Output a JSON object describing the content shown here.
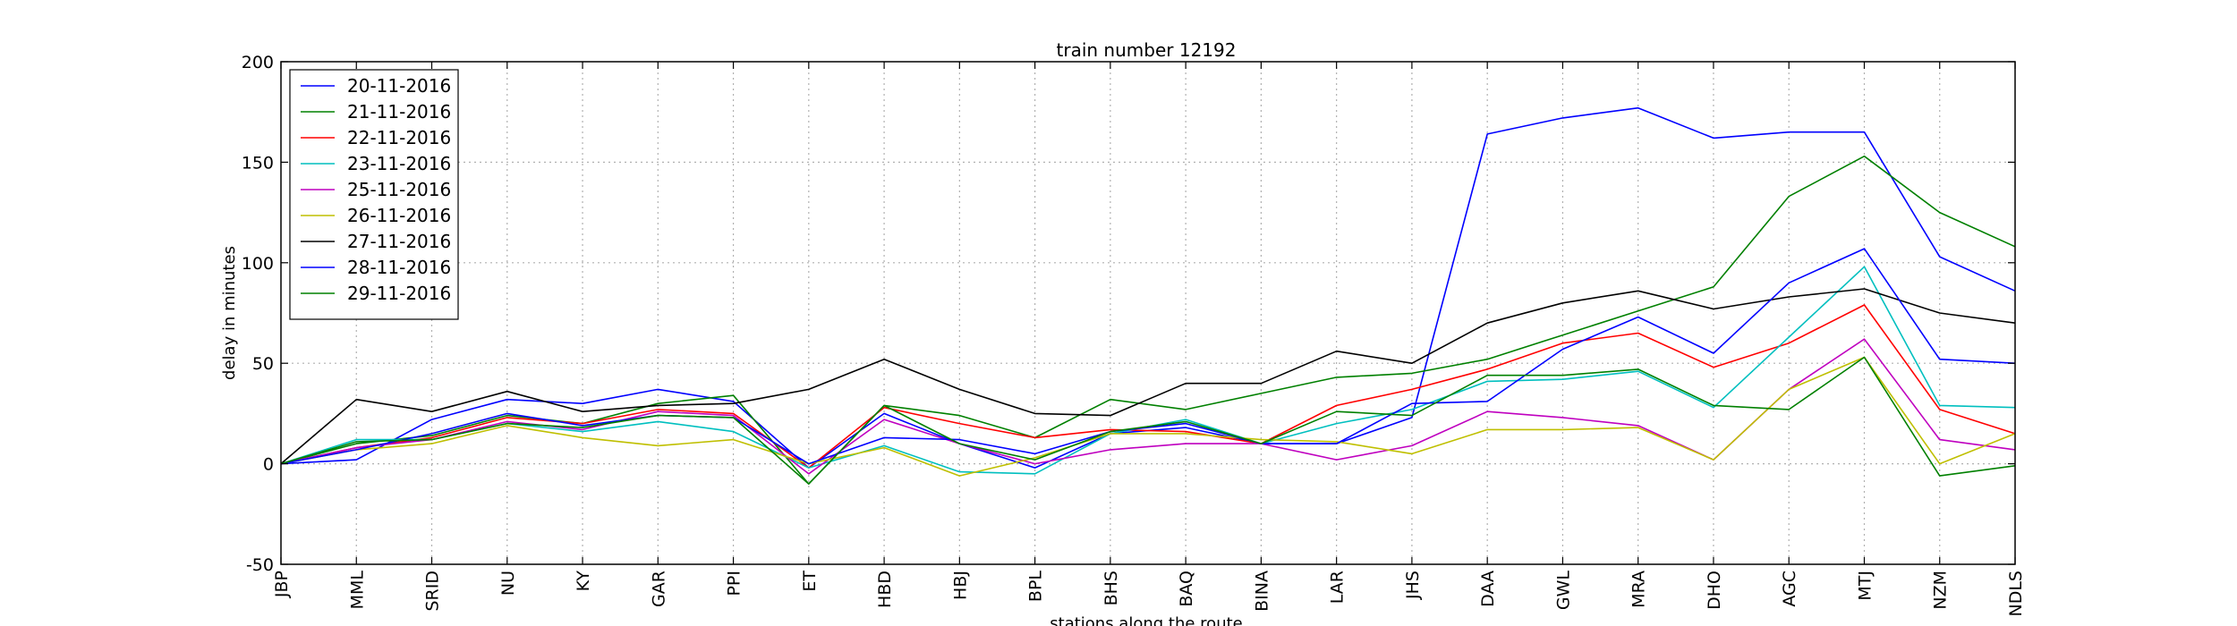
{
  "chart_data": {
    "type": "line",
    "title": "train number 12192",
    "xlabel": "stations along the route",
    "ylabel": "delay in minutes",
    "categories": [
      "JBP",
      "MML",
      "SRID",
      "NU",
      "KY",
      "GAR",
      "PPI",
      "ET",
      "HBD",
      "HBJ",
      "BPL",
      "BHS",
      "BAQ",
      "BINA",
      "LAR",
      "JHS",
      "DAA",
      "GWL",
      "MRA",
      "DHO",
      "AGC",
      "MTJ",
      "NZM",
      "NDLS"
    ],
    "ylim": [
      -50,
      200
    ],
    "yticks": [
      -50,
      0,
      50,
      100,
      150,
      200
    ],
    "grid": true,
    "legend_position": "upper-left",
    "series": [
      {
        "name": "20-11-2016",
        "color": "#0000ff",
        "values": [
          0,
          2,
          22,
          32,
          30,
          37,
          31,
          -2,
          25,
          10,
          -2,
          15,
          18,
          10,
          10,
          23,
          164,
          172,
          177,
          162,
          165,
          165,
          103,
          86
        ]
      },
      {
        "name": "21-11-2016",
        "color": "#008000",
        "values": [
          0,
          10,
          14,
          24,
          20,
          30,
          34,
          -10,
          29,
          24,
          13,
          32,
          27,
          35,
          43,
          45,
          52,
          64,
          76,
          88,
          133,
          153,
          125,
          108
        ]
      },
      {
        "name": "22-11-2016",
        "color": "#ff0000",
        "values": [
          0,
          8,
          13,
          23,
          20,
          27,
          25,
          -2,
          28,
          20,
          13,
          17,
          16,
          10,
          29,
          37,
          47,
          60,
          65,
          48,
          60,
          79,
          27,
          15
        ]
      },
      {
        "name": "23-11-2016",
        "color": "#00bfbf",
        "values": [
          0,
          12,
          12,
          20,
          16,
          21,
          16,
          -2,
          9,
          -4,
          -5,
          15,
          22,
          10,
          20,
          27,
          41,
          42,
          46,
          28,
          63,
          98,
          29,
          28
        ]
      },
      {
        "name": "25-11-2016",
        "color": "#bf00bf",
        "values": [
          0,
          8,
          12,
          21,
          17,
          26,
          24,
          -5,
          22,
          10,
          0,
          7,
          10,
          10,
          2,
          9,
          26,
          23,
          19,
          2,
          37,
          62,
          12,
          7
        ]
      },
      {
        "name": "26-11-2016",
        "color": "#bfbf00",
        "values": [
          0,
          7,
          10,
          19,
          13,
          9,
          12,
          0,
          8,
          -6,
          3,
          15,
          15,
          12,
          11,
          5,
          17,
          17,
          18,
          2,
          37,
          53,
          0,
          15
        ]
      },
      {
        "name": "27-11-2016",
        "color": "#000000",
        "values": [
          0,
          32,
          26,
          36,
          26,
          29,
          30,
          37,
          52,
          37,
          25,
          24,
          40,
          40,
          56,
          50,
          70,
          80,
          86,
          77,
          83,
          87,
          75,
          70
        ]
      },
      {
        "name": "28-11-2016",
        "color": "#0000ff",
        "values": [
          0,
          7,
          15,
          25,
          19,
          24,
          23,
          0,
          13,
          12,
          5,
          16,
          20,
          10,
          10,
          30,
          31,
          57,
          73,
          55,
          90,
          107,
          52,
          50
        ]
      },
      {
        "name": "29-11-2016",
        "color": "#008000",
        "values": [
          0,
          11,
          12,
          20,
          18,
          24,
          23,
          -10,
          29,
          10,
          2,
          16,
          21,
          10,
          26,
          24,
          44,
          44,
          47,
          29,
          27,
          53,
          -6,
          -1
        ]
      }
    ]
  }
}
